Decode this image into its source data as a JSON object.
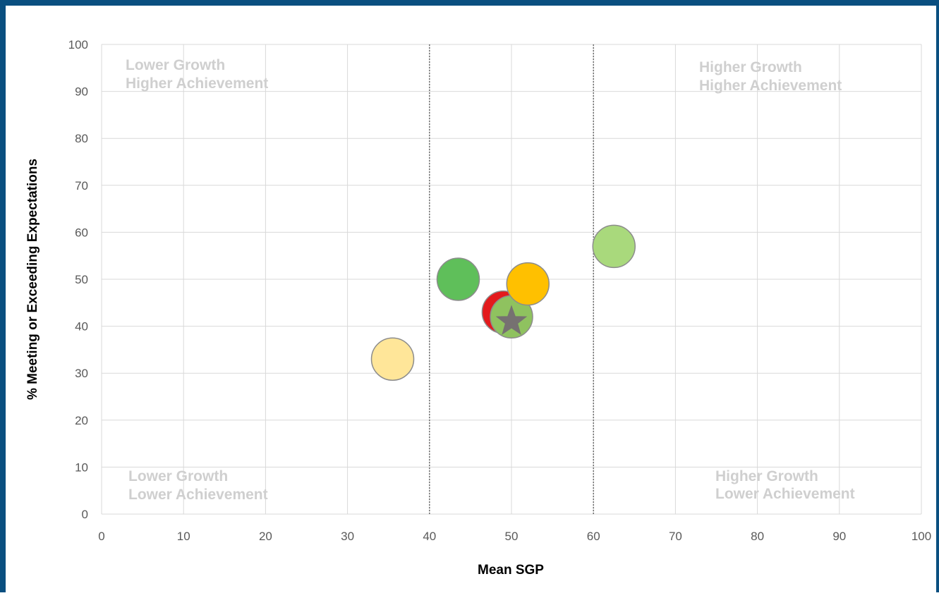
{
  "chart_data": {
    "type": "scatter",
    "xlabel": "Mean SGP",
    "ylabel": "% Meeting or Exceeding Expectations",
    "xlim": [
      0,
      100
    ],
    "ylim": [
      0,
      100
    ],
    "x_ticks": [
      "0",
      "10",
      "20",
      "30",
      "40",
      "50",
      "60",
      "70",
      "80",
      "90",
      "100"
    ],
    "y_ticks": [
      "0",
      "10",
      "20",
      "30",
      "40",
      "50",
      "60",
      "70",
      "80",
      "90",
      "100"
    ],
    "grid": true,
    "reference_lines_x": [
      40,
      60
    ],
    "quadrant_labels": {
      "top_left": [
        "Lower Growth",
        "Higher Achievement"
      ],
      "top_right": [
        "Higher Growth",
        "Higher Achievement"
      ],
      "bottom_left": [
        "Lower Growth",
        "Lower Achievement"
      ],
      "bottom_right": [
        "Higher Growth",
        "Lower Achievement"
      ]
    },
    "points": [
      {
        "x": 35.5,
        "y": 33,
        "color": "#ffe699",
        "marker": "circle"
      },
      {
        "x": 43.5,
        "y": 50,
        "color": "#5fbf5a",
        "marker": "circle"
      },
      {
        "x": 49,
        "y": 43,
        "color": "#e31a1c",
        "marker": "circle"
      },
      {
        "x": 50,
        "y": 42,
        "color": "#8fc25f",
        "marker": "circle"
      },
      {
        "x": 52,
        "y": 49,
        "color": "#ffc000",
        "marker": "circle"
      },
      {
        "x": 62.5,
        "y": 57,
        "color": "#a9d97c",
        "marker": "circle"
      },
      {
        "x": 50,
        "y": 41,
        "color": "#767171",
        "marker": "star"
      }
    ]
  }
}
